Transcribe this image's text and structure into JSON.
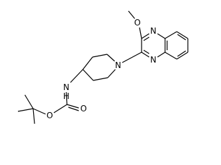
{
  "atoms": {
    "methoxy_o": "O",
    "n4": "N",
    "n1": "N",
    "piperidine_n": "N",
    "amide_n": "N",
    "amide_h": "H",
    "carbonyl_o": "O",
    "ester_o": "O"
  }
}
